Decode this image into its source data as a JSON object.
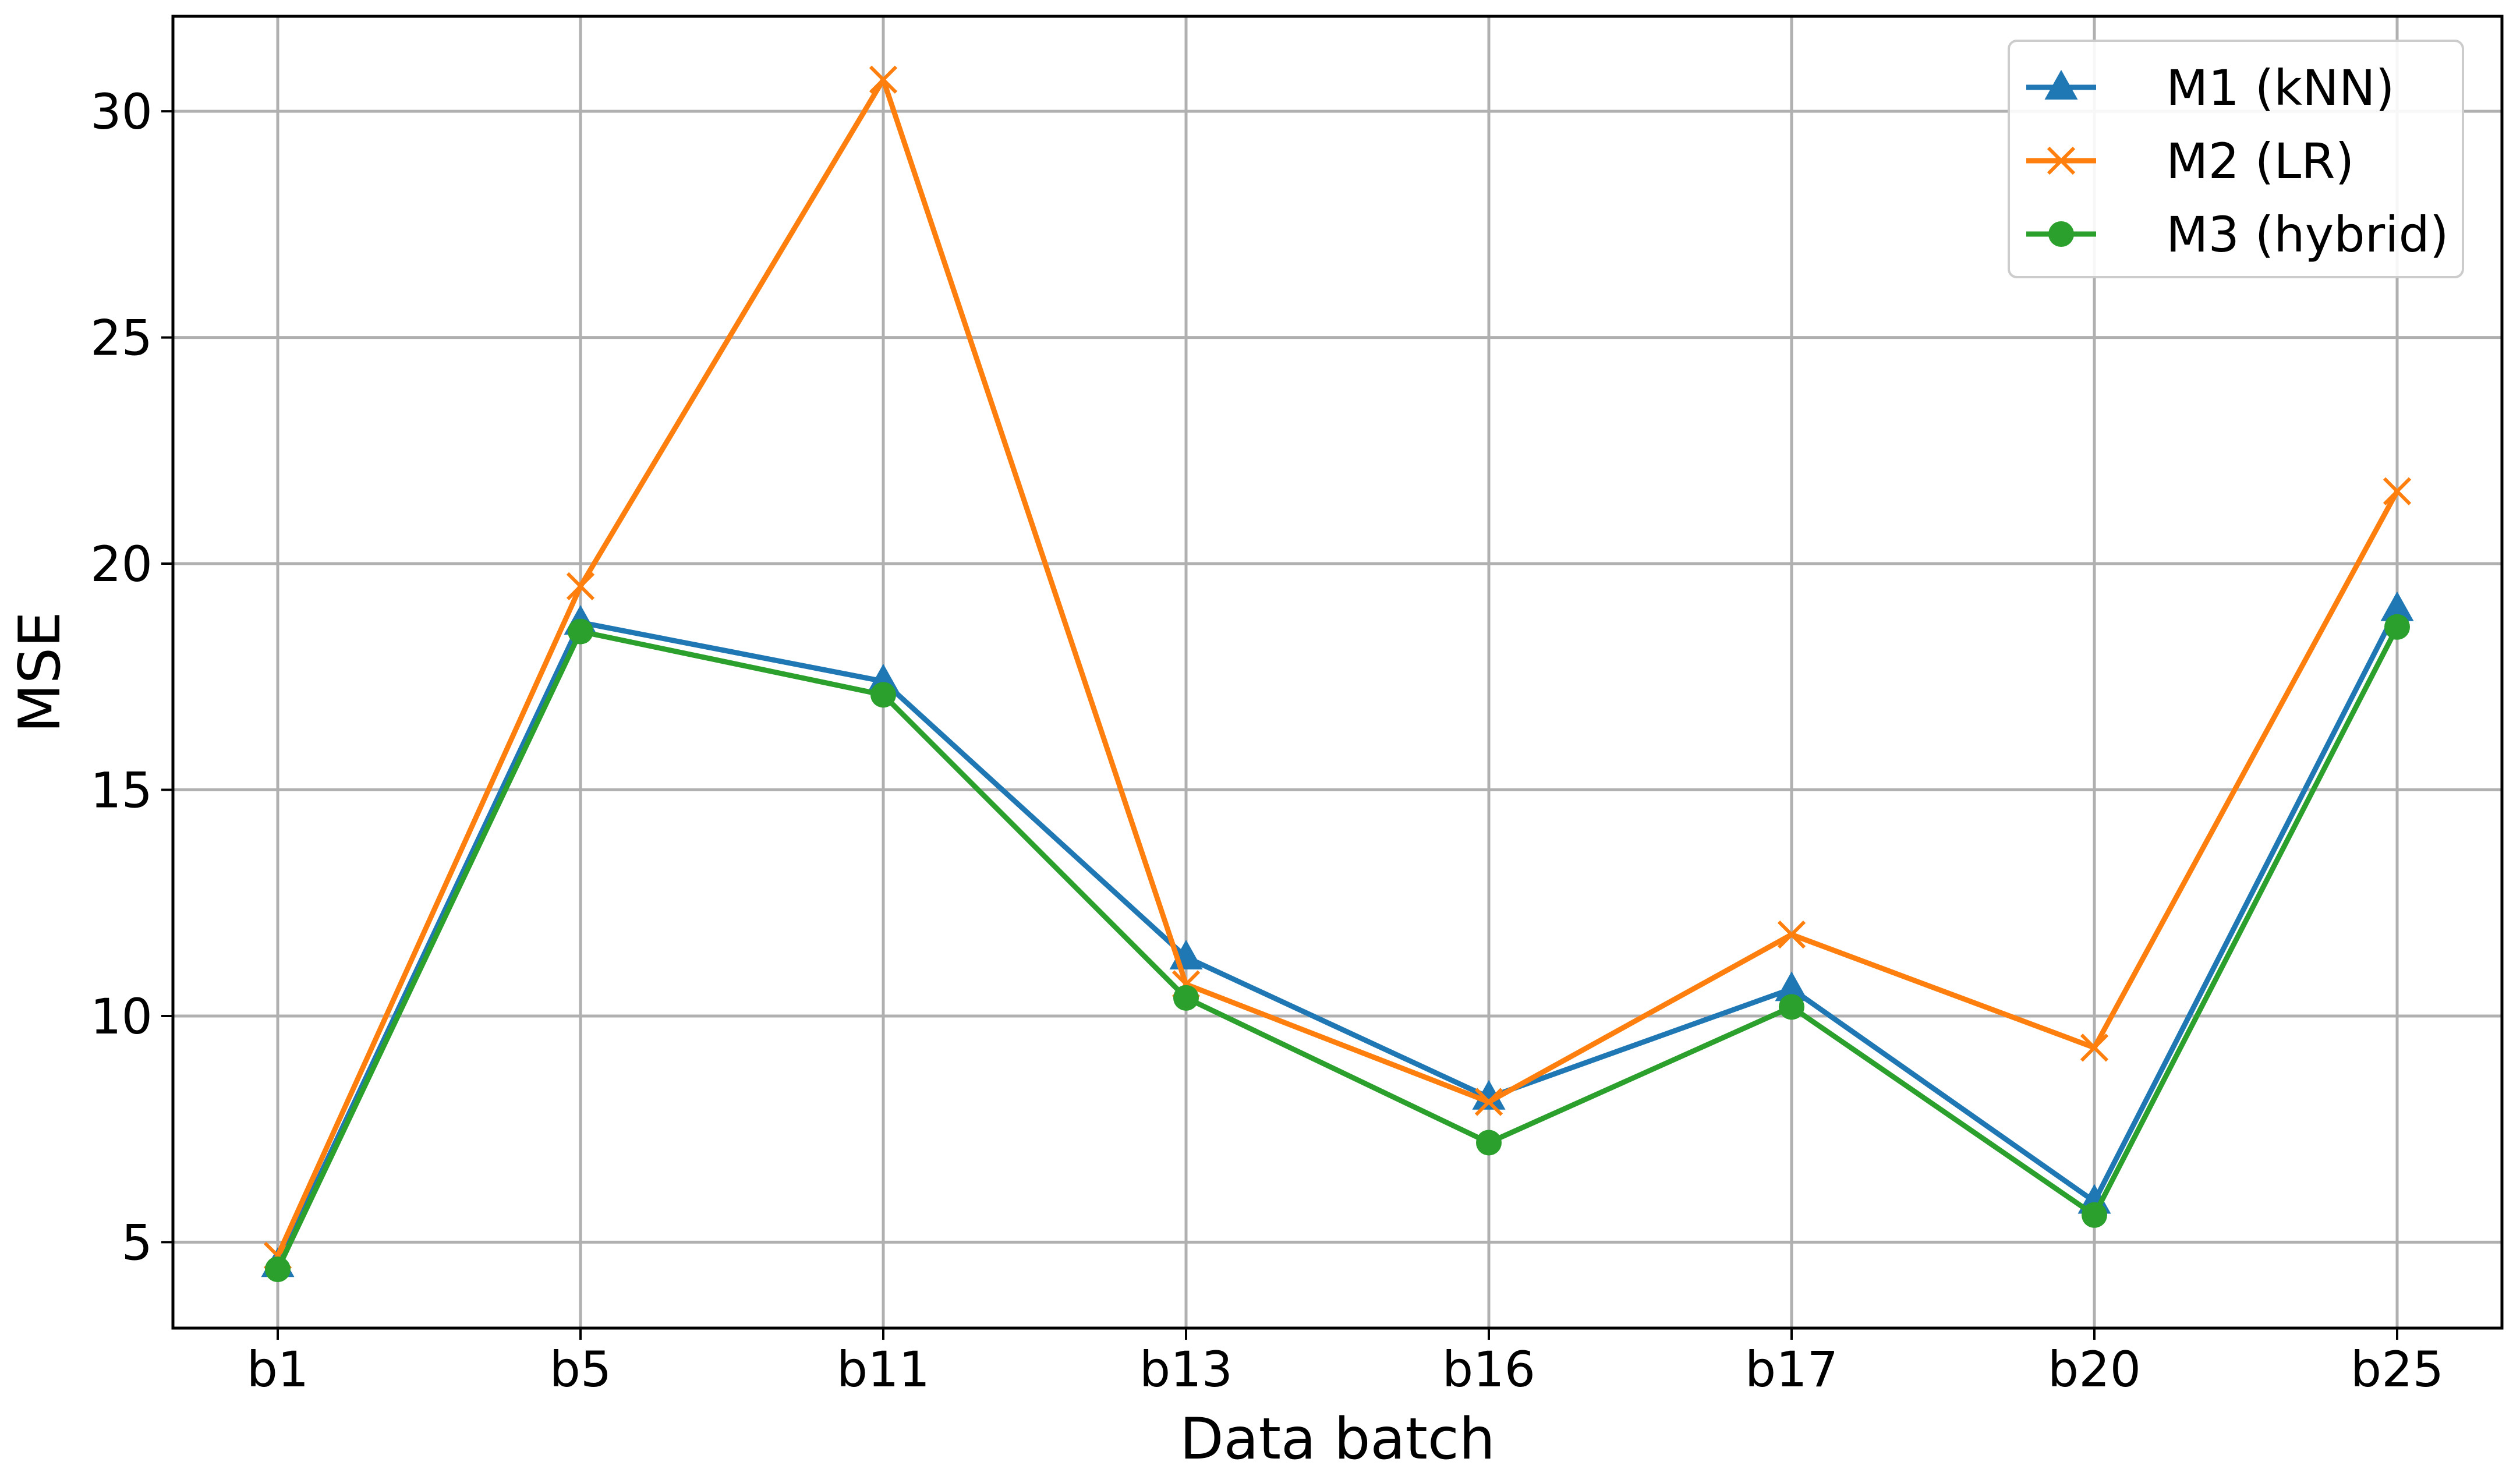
{
  "chart_data": {
    "type": "line",
    "title": "",
    "xlabel": "Data batch",
    "ylabel": "MSE",
    "categories": [
      "b1",
      "b5",
      "b11",
      "b13",
      "b16",
      "b17",
      "b20",
      "b25"
    ],
    "ylim": [
      3.1,
      32.1
    ],
    "yticks": [
      5,
      10,
      15,
      20,
      25,
      30
    ],
    "grid": true,
    "legend_position": "top-right",
    "series": [
      {
        "name": "M1 (kNN)",
        "marker": "triangle",
        "color": "#1f77b4",
        "values": [
          4.5,
          18.7,
          17.4,
          11.3,
          8.2,
          10.6,
          5.9,
          19.0
        ]
      },
      {
        "name": "M2 (LR)",
        "marker": "x",
        "color": "#ff7f0e",
        "values": [
          4.7,
          19.5,
          30.7,
          10.7,
          8.1,
          11.8,
          9.3,
          21.6
        ]
      },
      {
        "name": "M3 (hybrid)",
        "marker": "circle",
        "color": "#2ca02c",
        "values": [
          4.4,
          18.5,
          17.1,
          10.4,
          7.2,
          10.2,
          5.6,
          18.6
        ]
      }
    ]
  }
}
